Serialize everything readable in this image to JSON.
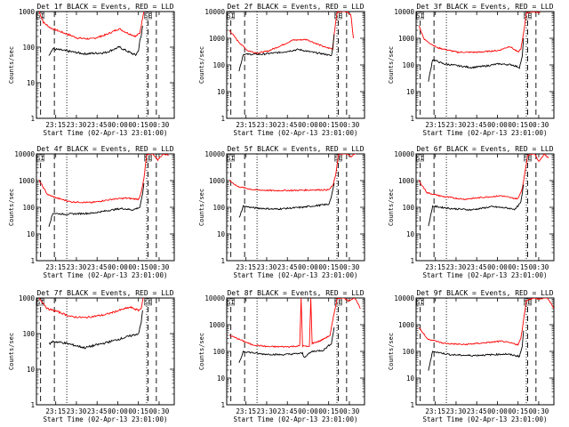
{
  "chart_data": {
    "type": "line",
    "shared": {
      "xlabel": "Start Time (02-Apr-13 23:01:00)",
      "ylabel": "Counts/sec",
      "x_ticks": [
        "23:15",
        "23:30",
        "23:45",
        "00:00",
        "00:15",
        "00:30"
      ],
      "x_tick_minutes": [
        14,
        29,
        44,
        59,
        74,
        89
      ],
      "x_range_minutes": [
        0,
        100
      ],
      "y_scale": "log",
      "corner_labels": [
        "SI",
        "SE"
      ],
      "colors": {
        "events": "#000000",
        "lld": "#ff0000"
      },
      "legend_text": "BLACK = Events, RED = LLD"
    },
    "panels": [
      {
        "title": "Det 1f BLACK = Events, RED = LLD",
        "ylim": [
          1,
          1000
        ],
        "y_ticks": [
          "1",
          "10",
          "100",
          "1000"
        ],
        "dashed_x": [
          3,
          13,
          81,
          87
        ],
        "dotted_x": [
          22,
          80
        ],
        "events": [
          [
            9,
            60
          ],
          [
            12,
            90
          ],
          [
            20,
            80
          ],
          [
            35,
            65
          ],
          [
            50,
            70
          ],
          [
            60,
            100
          ],
          [
            68,
            70
          ],
          [
            72,
            60
          ],
          [
            74,
            80
          ],
          [
            75,
            150
          ],
          [
            76,
            200
          ],
          [
            77,
            400
          ]
        ],
        "lld": [
          [
            2,
            1000
          ],
          [
            5,
            500
          ],
          [
            10,
            350
          ],
          [
            20,
            250
          ],
          [
            30,
            180
          ],
          [
            40,
            170
          ],
          [
            50,
            220
          ],
          [
            60,
            330
          ],
          [
            66,
            250
          ],
          [
            72,
            200
          ],
          [
            75,
            250
          ],
          [
            76,
            400
          ],
          [
            78,
            1100
          ]
        ]
      },
      {
        "title": "Det 2f BLACK = Events, RED = LLD",
        "ylim": [
          1,
          10000
        ],
        "y_ticks": [
          "1",
          "10",
          "100",
          "1000",
          "10000"
        ],
        "dashed_x": [
          3,
          13,
          81,
          87
        ],
        "dotted_x": [
          22,
          80
        ],
        "events": [
          [
            9,
            60
          ],
          [
            12,
            250
          ],
          [
            25,
            250
          ],
          [
            40,
            300
          ],
          [
            52,
            380
          ],
          [
            62,
            300
          ],
          [
            72,
            250
          ],
          [
            76,
            220
          ],
          [
            77,
            500
          ],
          [
            78,
            1400
          ]
        ],
        "lld": [
          [
            2,
            2000
          ],
          [
            8,
            800
          ],
          [
            15,
            350
          ],
          [
            22,
            280
          ],
          [
            30,
            330
          ],
          [
            40,
            550
          ],
          [
            48,
            850
          ],
          [
            58,
            900
          ],
          [
            66,
            600
          ],
          [
            72,
            450
          ],
          [
            77,
            400
          ],
          [
            78,
            1500
          ],
          [
            80,
            9000
          ],
          [
            85,
            11000
          ],
          [
            90,
            8000
          ],
          [
            92,
            1000
          ]
        ]
      },
      {
        "title": "Det 3f BLACK = Events, RED = LLD",
        "ylim": [
          1,
          10000
        ],
        "y_ticks": [
          "1",
          "10",
          "100",
          "1000",
          "10000"
        ],
        "dashed_x": [
          3,
          13,
          81,
          87
        ],
        "dotted_x": [
          22,
          80
        ],
        "events": [
          [
            9,
            25
          ],
          [
            12,
            160
          ],
          [
            20,
            110
          ],
          [
            40,
            80
          ],
          [
            50,
            90
          ],
          [
            60,
            110
          ],
          [
            70,
            100
          ],
          [
            75,
            80
          ],
          [
            77,
            200
          ],
          [
            78,
            1000
          ]
        ],
        "lld": [
          [
            2,
            3000
          ],
          [
            6,
            900
          ],
          [
            15,
            450
          ],
          [
            30,
            300
          ],
          [
            45,
            300
          ],
          [
            60,
            350
          ],
          [
            68,
            500
          ],
          [
            74,
            300
          ],
          [
            76,
            400
          ],
          [
            78,
            1500
          ],
          [
            80,
            9000
          ],
          [
            85,
            10000
          ],
          [
            90,
            9000
          ]
        ]
      },
      {
        "title": "Det 4f BLACK = Events, RED = LLD",
        "ylim": [
          1,
          10000
        ],
        "y_ticks": [
          "1",
          "10",
          "100",
          "1000",
          "10000"
        ],
        "dashed_x": [
          3,
          13,
          81,
          87
        ],
        "dotted_x": [
          22,
          80
        ],
        "events": [
          [
            9,
            20
          ],
          [
            12,
            60
          ],
          [
            20,
            55
          ],
          [
            40,
            60
          ],
          [
            55,
            80
          ],
          [
            62,
            90
          ],
          [
            70,
            80
          ],
          [
            75,
            100
          ],
          [
            77,
            300
          ],
          [
            78,
            800
          ]
        ],
        "lld": [
          [
            2,
            1000
          ],
          [
            8,
            300
          ],
          [
            15,
            220
          ],
          [
            25,
            160
          ],
          [
            40,
            150
          ],
          [
            55,
            200
          ],
          [
            65,
            220
          ],
          [
            74,
            200
          ],
          [
            76,
            350
          ],
          [
            78,
            1200
          ],
          [
            80,
            9000
          ],
          [
            84,
            11000
          ],
          [
            88,
            6000
          ],
          [
            92,
            10000
          ],
          [
            96,
            9000
          ]
        ]
      },
      {
        "title": "Det 5f BLACK = Events, RED = LLD",
        "ylim": [
          1,
          10000
        ],
        "y_ticks": [
          "1",
          "10",
          "100",
          "1000",
          "10000"
        ],
        "dashed_x": [
          3,
          13,
          81,
          87
        ],
        "dotted_x": [
          22,
          80
        ],
        "events": [
          [
            9,
            40
          ],
          [
            12,
            110
          ],
          [
            20,
            95
          ],
          [
            35,
            85
          ],
          [
            55,
            100
          ],
          [
            68,
            120
          ],
          [
            74,
            130
          ],
          [
            76,
            250
          ],
          [
            78,
            800
          ]
        ],
        "lld": [
          [
            2,
            1000
          ],
          [
            8,
            600
          ],
          [
            20,
            450
          ],
          [
            35,
            420
          ],
          [
            50,
            430
          ],
          [
            65,
            450
          ],
          [
            74,
            450
          ],
          [
            77,
            650
          ],
          [
            79,
            1500
          ],
          [
            81,
            9000
          ],
          [
            86,
            11000
          ],
          [
            90,
            8000
          ],
          [
            94,
            11000
          ]
        ]
      },
      {
        "title": "Det 6f BLACK = Events, RED = LLD",
        "ylim": [
          1,
          10000
        ],
        "y_ticks": [
          "1",
          "10",
          "100",
          "1000",
          "10000"
        ],
        "dashed_x": [
          3,
          13,
          81,
          87
        ],
        "dotted_x": [
          22,
          80
        ],
        "events": [
          [
            9,
            20
          ],
          [
            12,
            110
          ],
          [
            25,
            90
          ],
          [
            40,
            80
          ],
          [
            55,
            105
          ],
          [
            65,
            95
          ],
          [
            72,
            85
          ],
          [
            76,
            150
          ],
          [
            78,
            700
          ]
        ],
        "lld": [
          [
            2,
            1000
          ],
          [
            8,
            350
          ],
          [
            20,
            250
          ],
          [
            35,
            200
          ],
          [
            50,
            240
          ],
          [
            62,
            270
          ],
          [
            70,
            220
          ],
          [
            74,
            210
          ],
          [
            77,
            500
          ],
          [
            79,
            2000
          ],
          [
            81,
            9000
          ],
          [
            86,
            11000
          ],
          [
            89,
            5000
          ],
          [
            93,
            10000
          ],
          [
            96,
            7000
          ]
        ]
      },
      {
        "title": "Det 7f BLACK = Events, RED = LLD",
        "ylim": [
          1,
          1000
        ],
        "y_ticks": [
          "1",
          "10",
          "100",
          "1000"
        ],
        "dashed_x": [
          3,
          13,
          81,
          87
        ],
        "dotted_x": [
          22,
          80
        ],
        "events": [
          [
            9,
            50
          ],
          [
            12,
            60
          ],
          [
            20,
            55
          ],
          [
            35,
            40
          ],
          [
            50,
            55
          ],
          [
            60,
            70
          ],
          [
            70,
            90
          ],
          [
            74,
            100
          ],
          [
            76,
            200
          ],
          [
            77,
            450
          ]
        ],
        "lld": [
          [
            2,
            1000
          ],
          [
            8,
            500
          ],
          [
            15,
            420
          ],
          [
            25,
            300
          ],
          [
            35,
            280
          ],
          [
            50,
            340
          ],
          [
            60,
            450
          ],
          [
            68,
            550
          ],
          [
            74,
            450
          ],
          [
            76,
            500
          ],
          [
            77,
            900
          ],
          [
            78,
            1100
          ]
        ]
      },
      {
        "title": "Det 8f BLACK = Events, RED = LLD",
        "ylim": [
          1,
          10000
        ],
        "y_ticks": [
          "1",
          "10",
          "100",
          "1000",
          "10000"
        ],
        "dashed_x": [
          3,
          13,
          81,
          87
        ],
        "dotted_x": [
          22,
          80
        ],
        "events": [
          [
            9,
            35
          ],
          [
            12,
            100
          ],
          [
            25,
            80
          ],
          [
            40,
            75
          ],
          [
            55,
            85
          ],
          [
            56,
            60
          ],
          [
            62,
            100
          ],
          [
            70,
            110
          ],
          [
            76,
            200
          ],
          [
            78,
            800
          ]
        ],
        "lld": [
          [
            2,
            400
          ],
          [
            8,
            300
          ],
          [
            18,
            180
          ],
          [
            30,
            150
          ],
          [
            45,
            150
          ],
          [
            53,
            160
          ],
          [
            54,
            10000
          ],
          [
            55,
            160
          ],
          [
            60,
            150
          ],
          [
            61,
            10000
          ],
          [
            62,
            200
          ],
          [
            68,
            250
          ],
          [
            75,
            400
          ],
          [
            77,
            1500
          ],
          [
            80,
            9000
          ],
          [
            84,
            11000
          ],
          [
            88,
            8000
          ],
          [
            93,
            10000
          ],
          [
            97,
            4000
          ]
        ]
      },
      {
        "title": "Det 9f BLACK = Events, RED = LLD",
        "ylim": [
          1,
          10000
        ],
        "y_ticks": [
          "1",
          "10",
          "100",
          "1000",
          "10000"
        ],
        "dashed_x": [
          3,
          13,
          81,
          87
        ],
        "dotted_x": [
          22,
          80
        ],
        "events": [
          [
            9,
            20
          ],
          [
            12,
            100
          ],
          [
            25,
            75
          ],
          [
            40,
            70
          ],
          [
            55,
            75
          ],
          [
            65,
            80
          ],
          [
            72,
            70
          ],
          [
            75,
            65
          ],
          [
            77,
            150
          ],
          [
            78,
            600
          ]
        ],
        "lld": [
          [
            2,
            800
          ],
          [
            8,
            300
          ],
          [
            20,
            200
          ],
          [
            35,
            180
          ],
          [
            50,
            210
          ],
          [
            62,
            240
          ],
          [
            70,
            200
          ],
          [
            74,
            180
          ],
          [
            76,
            300
          ],
          [
            78,
            1500
          ],
          [
            80,
            8000
          ],
          [
            85,
            10000
          ],
          [
            90,
            9000
          ],
          [
            95,
            11000
          ],
          [
            100,
            4000
          ]
        ]
      }
    ]
  }
}
